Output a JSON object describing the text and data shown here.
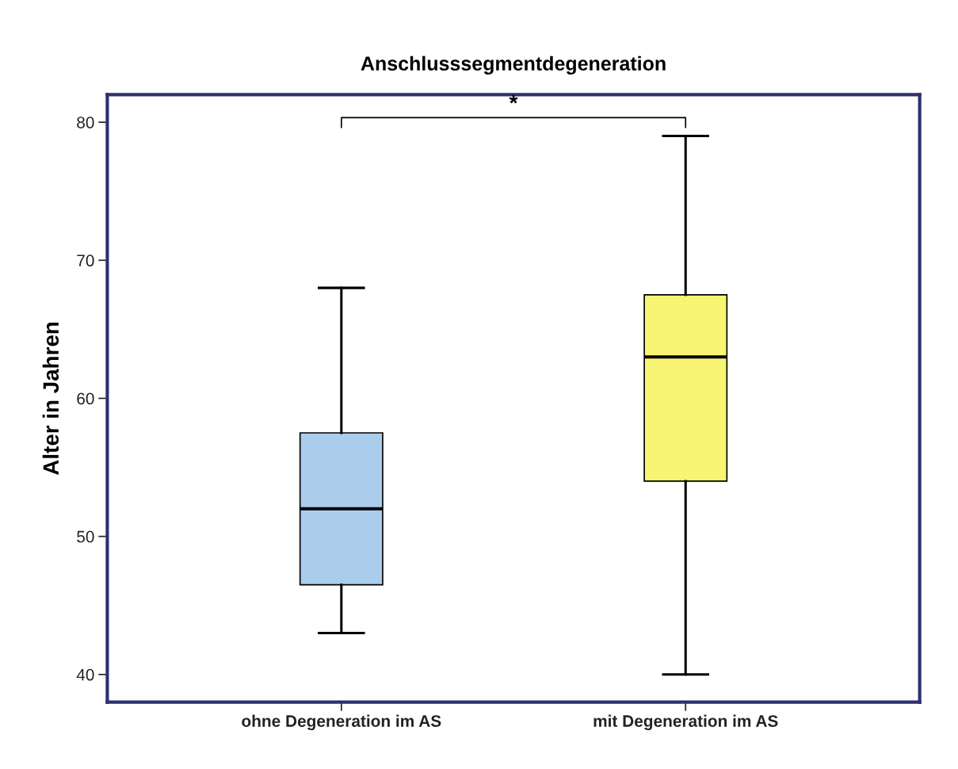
{
  "chart_data": {
    "type": "box",
    "title": "Anschlusssegmentdegeneration",
    "ylabel": "Alter in Jahren",
    "categories": [
      "ohne Degeneration im AS",
      "mit Degeneration im AS"
    ],
    "colors": [
      "#abcdec",
      "#f8f574"
    ],
    "boxes": [
      {
        "low": 43,
        "q1": 46.5,
        "median": 52,
        "q3": 57.5,
        "high": 68
      },
      {
        "low": 40,
        "q1": 54,
        "median": 63,
        "q3": 67.5,
        "high": 79
      }
    ],
    "ylim": [
      38,
      82
    ],
    "yticks": [
      40,
      50,
      60,
      70,
      80
    ],
    "grid": false,
    "legend": false,
    "annotations": [
      "*"
    ]
  }
}
